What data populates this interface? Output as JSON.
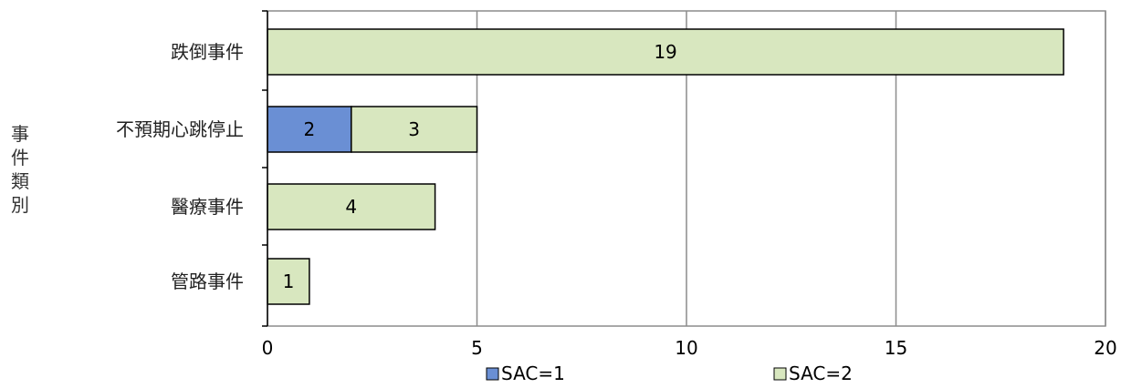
{
  "chart_data": {
    "type": "bar",
    "orientation": "horizontal",
    "stacked": true,
    "ylabel": "事件類別",
    "xlabel": "",
    "title": "",
    "categories": [
      "跌倒事件",
      "不預期心跳停止",
      "醫療事件",
      "管路事件"
    ],
    "series": [
      {
        "name": "SAC=1",
        "color": "#6a8fd4",
        "values": [
          0,
          2,
          0,
          0
        ]
      },
      {
        "name": "SAC=2",
        "color": "#d8e7bf",
        "values": [
          19,
          3,
          4,
          1
        ]
      }
    ],
    "xlim": [
      0,
      20
    ],
    "xticks": [
      0,
      5,
      10,
      15,
      20
    ],
    "grid": "vertical",
    "legend": "bottom",
    "data_labels": [
      {
        "category": "跌倒事件",
        "series": "SAC=2",
        "text": "19"
      },
      {
        "category": "不預期心跳停止",
        "series": "SAC=1",
        "text": "2"
      },
      {
        "category": "不預期心跳停止",
        "series": "SAC=2",
        "text": "3"
      },
      {
        "category": "醫療事件",
        "series": "SAC=2",
        "text": "4"
      },
      {
        "category": "管路事件",
        "series": "SAC=2",
        "text": "1"
      }
    ]
  }
}
